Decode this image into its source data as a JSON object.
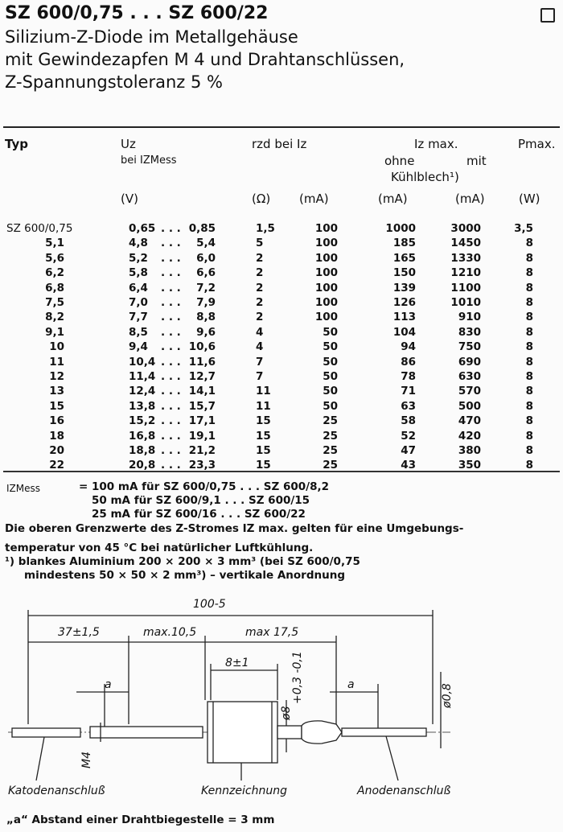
{
  "header": {
    "title": "SZ 600/0,75 . . . SZ 600/22",
    "subtitle_lines": [
      "Silizium-Z-Diode im Metallgehäuse",
      "mit Gewindezapfen M 4 und Drahtanschlüssen,",
      "Z-Spannungstoleranz 5 %"
    ]
  },
  "table": {
    "headers": {
      "typ": "Typ",
      "uz": "Uz",
      "uz_sub": "bei IZMess",
      "rzd": "rzd bei Iz",
      "iz_max": "Iz max.",
      "ohne": "ohne",
      "mit": "mit",
      "kuehlblech": "Kühlblech¹)",
      "pmax": "Pmax."
    },
    "units": [
      "(V)",
      "(Ω)",
      "(mA)",
      "(mA)",
      "(mA)",
      "(W)"
    ],
    "rows": [
      {
        "typ": "SZ 600/0,75",
        "umin": "0,65",
        "umax": "0,85",
        "rzd": "1,5",
        "iz": "100",
        "ohne": "1000",
        "mit": "3000",
        "p": "3,5"
      },
      {
        "typ": "5,1",
        "umin": "4,8",
        "umax": "5,4",
        "rzd": "5",
        "iz": "100",
        "ohne": "185",
        "mit": "1450",
        "p": "8"
      },
      {
        "typ": "5,6",
        "umin": "5,2",
        "umax": "6,0",
        "rzd": "2",
        "iz": "100",
        "ohne": "165",
        "mit": "1330",
        "p": "8"
      },
      {
        "typ": "6,2",
        "umin": "5,8",
        "umax": "6,6",
        "rzd": "2",
        "iz": "100",
        "ohne": "150",
        "mit": "1210",
        "p": "8"
      },
      {
        "typ": "6,8",
        "umin": "6,4",
        "umax": "7,2",
        "rzd": "2",
        "iz": "100",
        "ohne": "139",
        "mit": "1100",
        "p": "8"
      },
      {
        "typ": "7,5",
        "umin": "7,0",
        "umax": "7,9",
        "rzd": "2",
        "iz": "100",
        "ohne": "126",
        "mit": "1010",
        "p": "8"
      },
      {
        "typ": "8,2",
        "umin": "7,7",
        "umax": "8,8",
        "rzd": "2",
        "iz": "100",
        "ohne": "113",
        "mit": "910",
        "p": "8"
      },
      {
        "typ": "9,1",
        "umin": "8,5",
        "umax": "9,6",
        "rzd": "4",
        "iz": "50",
        "ohne": "104",
        "mit": "830",
        "p": "8"
      },
      {
        "typ": "10",
        "umin": "9,4",
        "umax": "10,6",
        "rzd": "4",
        "iz": "50",
        "ohne": "94",
        "mit": "750",
        "p": "8"
      },
      {
        "typ": "11",
        "umin": "10,4",
        "umax": "11,6",
        "rzd": "7",
        "iz": "50",
        "ohne": "86",
        "mit": "690",
        "p": "8"
      },
      {
        "typ": "12",
        "umin": "11,4",
        "umax": "12,7",
        "rzd": "7",
        "iz": "50",
        "ohne": "78",
        "mit": "630",
        "p": "8"
      },
      {
        "typ": "13",
        "umin": "12,4",
        "umax": "14,1",
        "rzd": "11",
        "iz": "50",
        "ohne": "71",
        "mit": "570",
        "p": "8"
      },
      {
        "typ": "15",
        "umin": "13,8",
        "umax": "15,7",
        "rzd": "11",
        "iz": "50",
        "ohne": "63",
        "mit": "500",
        "p": "8"
      },
      {
        "typ": "16",
        "umin": "15,2",
        "umax": "17,1",
        "rzd": "15",
        "iz": "25",
        "ohne": "58",
        "mit": "470",
        "p": "8"
      },
      {
        "typ": "18",
        "umin": "16,8",
        "umax": "19,1",
        "rzd": "15",
        "iz": "25",
        "ohne": "52",
        "mit": "420",
        "p": "8"
      },
      {
        "typ": "20",
        "umin": "18,8",
        "umax": "21,2",
        "rzd": "15",
        "iz": "25",
        "ohne": "47",
        "mit": "380",
        "p": "8"
      },
      {
        "typ": "22",
        "umin": "20,8",
        "umax": "23,3",
        "rzd": "15",
        "iz": "25",
        "ohne": "43",
        "mit": "350",
        "p": "8"
      }
    ],
    "range_sep": ". . ."
  },
  "notes": {
    "izmess_label": "IZMess",
    "izmess_lines": [
      "= 100 mA für SZ 600/0,75 . . . SZ 600/8,2",
      "50 mA für SZ 600/9,1  . . . SZ 600/15",
      "25 mA für SZ 600/16   . . . SZ 600/22"
    ],
    "paragraph": [
      "Die oberen Grenzwerte des Z-Stromes IZ max. gelten für eine Umgebungs-",
      "temperatur von 45 °C bei natürlicher Luftkühlung.",
      "¹)  blankes Aluminium 200 × 200 × 3 mm³ (bei SZ 600/0,75",
      "mindestens 50 × 50 × 2 mm³) – vertikale Anordnung"
    ]
  },
  "drawing": {
    "dim_total": "100-5",
    "dim_left": "37±1,5",
    "dim_mid": "max.10,5",
    "dim_right": "max 17,5",
    "dim_body": "8±1",
    "dim_dia": "ø8",
    "dim_tol": "+0,3 -0,1",
    "dim_a1": "a",
    "dim_a2": "a",
    "dim_wire": "ø0,8",
    "thread": "M4",
    "label_cathode": "Katodenanschluß",
    "label_marking": "Kennzeichnung",
    "label_anode": "Anodenanschluß",
    "footnote": "„a“ Abstand einer Drahtbiegestelle = 3 mm"
  }
}
